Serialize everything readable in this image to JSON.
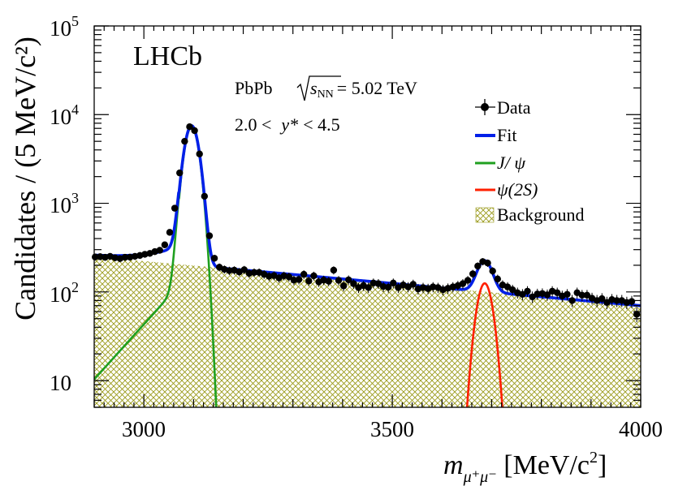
{
  "chart_data": {
    "type": "scatter",
    "experiment_label": "LHCb",
    "system_label": "PbPb",
    "energy_label": "= 5.02 TeV",
    "sqrt_s_symbol": "s",
    "sqrt_s_subscript": "NN",
    "rapidity_label_left": "2.0 <",
    "rapidity_label_var": "y*",
    "rapidity_label_right": "< 4.5",
    "xlabel_main": "m",
    "xlabel_sub": "μ⁺μ⁻",
    "xlabel_units": " [MeV/c",
    "xlabel_units_exp": "2",
    "xlabel_close": "]",
    "ylabel": "Candidates / (5 MeV/c²)",
    "x_range": [
      2900,
      4000
    ],
    "y_range_log": [
      5,
      100000
    ],
    "y_scale": "log",
    "x_ticks": [
      {
        "value": 3000,
        "label": "3000"
      },
      {
        "value": 3500,
        "label": "3500"
      },
      {
        "value": 4000,
        "label": "4000"
      }
    ],
    "y_ticks": [
      {
        "value": 10,
        "base": "10",
        "exp": ""
      },
      {
        "value": 100,
        "base": "10",
        "exp": "2"
      },
      {
        "value": 1000,
        "base": "10",
        "exp": "3"
      },
      {
        "value": 10000,
        "base": "10",
        "exp": "4"
      },
      {
        "value": 100000,
        "base": "10",
        "exp": "5"
      }
    ],
    "legend": {
      "position": "right",
      "entries": [
        {
          "label": "Data",
          "kind": "marker",
          "color": "#000000"
        },
        {
          "label": "Fit",
          "kind": "line",
          "color": "#0020e8"
        },
        {
          "label": "J/ ψ",
          "kind": "line",
          "color": "#20a020"
        },
        {
          "label": "ψ(2S)",
          "kind": "line",
          "color": "#ff2000"
        },
        {
          "label": "Background",
          "kind": "hatch",
          "color": "#9a9a1a"
        }
      ]
    },
    "model": {
      "background": {
        "a": 250,
        "b": 70,
        "tau": 320
      },
      "jpsi": {
        "mean": 3096,
        "sigma": 13,
        "amplitude": 7300
      },
      "psi2s": {
        "mean": 3686,
        "sigma": 14,
        "amplitude": 125
      }
    },
    "data_points": [
      [
        2902,
        248
      ],
      [
        2912,
        250
      ],
      [
        2922,
        246
      ],
      [
        2932,
        252
      ],
      [
        2942,
        243
      ],
      [
        2952,
        238
      ],
      [
        2962,
        246
      ],
      [
        2972,
        247
      ],
      [
        2982,
        252
      ],
      [
        2992,
        258
      ],
      [
        3002,
        266
      ],
      [
        3012,
        272
      ],
      [
        3022,
        285
      ],
      [
        3032,
        295
      ],
      [
        3042,
        340
      ],
      [
        3052,
        470
      ],
      [
        3062,
        880
      ],
      [
        3072,
        2200
      ],
      [
        3082,
        5000
      ],
      [
        3092,
        7300
      ],
      [
        3102,
        6600
      ],
      [
        3112,
        3600
      ],
      [
        3122,
        1200
      ],
      [
        3132,
        430
      ],
      [
        3142,
        240
      ],
      [
        3152,
        190
      ],
      [
        3162,
        180
      ],
      [
        3172,
        174
      ],
      [
        3182,
        176
      ],
      [
        3192,
        168
      ],
      [
        3202,
        178
      ],
      [
        3212,
        162
      ],
      [
        3222,
        166
      ],
      [
        3232,
        166
      ],
      [
        3242,
        158
      ],
      [
        3252,
        150
      ],
      [
        3262,
        153
      ],
      [
        3272,
        144
      ],
      [
        3282,
        152
      ],
      [
        3292,
        148
      ],
      [
        3302,
        136
      ],
      [
        3312,
        138
      ],
      [
        3322,
        158
      ],
      [
        3332,
        133
      ],
      [
        3342,
        152
      ],
      [
        3352,
        130
      ],
      [
        3362,
        136
      ],
      [
        3372,
        132
      ],
      [
        3382,
        176
      ],
      [
        3392,
        135
      ],
      [
        3402,
        117
      ],
      [
        3412,
        137
      ],
      [
        3422,
        124
      ],
      [
        3432,
        112
      ],
      [
        3442,
        118
      ],
      [
        3452,
        112
      ],
      [
        3462,
        126
      ],
      [
        3472,
        124
      ],
      [
        3482,
        115
      ],
      [
        3492,
        113
      ],
      [
        3502,
        126
      ],
      [
        3512,
        112
      ],
      [
        3522,
        120
      ],
      [
        3532,
        114
      ],
      [
        3542,
        122
      ],
      [
        3552,
        108
      ],
      [
        3562,
        112
      ],
      [
        3572,
        109
      ],
      [
        3582,
        114
      ],
      [
        3592,
        112
      ],
      [
        3602,
        106
      ],
      [
        3612,
        110
      ],
      [
        3622,
        114
      ],
      [
        3632,
        118
      ],
      [
        3642,
        124
      ],
      [
        3652,
        135
      ],
      [
        3662,
        160
      ],
      [
        3672,
        196
      ],
      [
        3682,
        220
      ],
      [
        3692,
        212
      ],
      [
        3702,
        172
      ],
      [
        3712,
        140
      ],
      [
        3722,
        120
      ],
      [
        3732,
        114
      ],
      [
        3742,
        106
      ],
      [
        3752,
        98
      ],
      [
        3762,
        94
      ],
      [
        3772,
        102
      ],
      [
        3782,
        88
      ],
      [
        3792,
        95
      ],
      [
        3802,
        96
      ],
      [
        3812,
        93
      ],
      [
        3822,
        102
      ],
      [
        3832,
        98
      ],
      [
        3842,
        90
      ],
      [
        3852,
        94
      ],
      [
        3862,
        80
      ],
      [
        3872,
        98
      ],
      [
        3882,
        92
      ],
      [
        3892,
        92
      ],
      [
        3902,
        85
      ],
      [
        3912,
        80
      ],
      [
        3922,
        84
      ],
      [
        3932,
        76
      ],
      [
        3942,
        82
      ],
      [
        3952,
        80
      ],
      [
        3962,
        80
      ],
      [
        3972,
        76
      ],
      [
        3982,
        78
      ],
      [
        3992,
        56
      ]
    ]
  },
  "colors": {
    "fit": "#0020e8",
    "jpsi": "#20a020",
    "psi2s": "#ff2000",
    "background_hatch": "#9a9a1a",
    "data": "#000000"
  }
}
